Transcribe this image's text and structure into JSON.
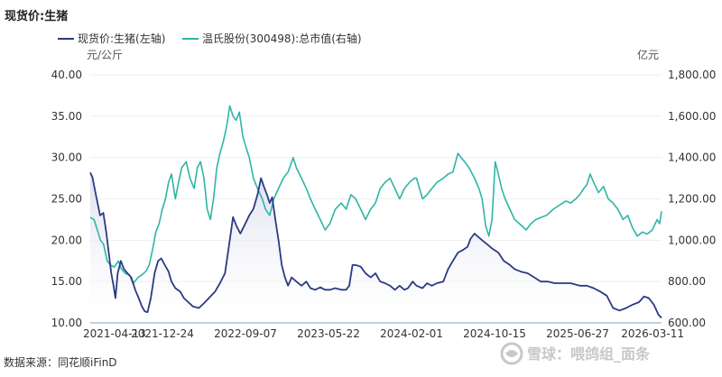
{
  "title": "现货价:生猪",
  "source_note": "数据来源：同花顺iFinD",
  "watermark": {
    "icon": "snowball-logo-icon",
    "text": "雪球：喂鸽组_面条"
  },
  "colors": {
    "left_series": "#2b3a85",
    "right_series": "#2fb5a5",
    "grid": "#eeeeee",
    "area_fill": "#d9dcec"
  },
  "chart_data": {
    "type": "line",
    "title": "现货价:生猪",
    "x_ticks": [
      "2021-04-13",
      "2021-12-24",
      "2022-09-07",
      "2023-05-22",
      "2024-02-01",
      "2024-10-15",
      "2025-06-27",
      "2026-03-11"
    ],
    "x_range": [
      "2021-04-13",
      "2026-03-11"
    ],
    "y_left": {
      "unit": "元/公斤",
      "ticks": [
        "10.00",
        "15.00",
        "20.00",
        "25.00",
        "30.00",
        "35.00",
        "40.00"
      ],
      "range": [
        10,
        40
      ]
    },
    "y_right": {
      "unit": "亿元",
      "ticks": [
        "600.00",
        "800.00",
        "1,000.00",
        "1,200.00",
        "1,400.00",
        "1,600.00",
        "1,800.00"
      ],
      "range": [
        600,
        1800
      ]
    },
    "grid": true,
    "legend_position": "top-left",
    "series": [
      {
        "name": "现货价:生猪(左轴)",
        "axis": "left",
        "style": "line-with-area",
        "points": [
          [
            "2021-04-13",
            28.2
          ],
          [
            "2021-04-20",
            27.6
          ],
          [
            "2021-04-28",
            26.0
          ],
          [
            "2021-05-06",
            24.5
          ],
          [
            "2021-05-14",
            23.0
          ],
          [
            "2021-05-24",
            23.3
          ],
          [
            "2021-06-02",
            21.0
          ],
          [
            "2021-06-10",
            18.5
          ],
          [
            "2021-06-18",
            16.0
          ],
          [
            "2021-06-25",
            14.5
          ],
          [
            "2021-07-01",
            13.0
          ],
          [
            "2021-07-08",
            16.0
          ],
          [
            "2021-07-18",
            17.5
          ],
          [
            "2021-07-28",
            16.5
          ],
          [
            "2021-08-08",
            16.0
          ],
          [
            "2021-08-20",
            15.5
          ],
          [
            "2021-09-01",
            14.0
          ],
          [
            "2021-09-12",
            13.0
          ],
          [
            "2021-09-22",
            12.0
          ],
          [
            "2021-10-01",
            11.4
          ],
          [
            "2021-10-10",
            11.3
          ],
          [
            "2021-10-20",
            13.0
          ],
          [
            "2021-11-01",
            16.0
          ],
          [
            "2021-11-12",
            17.5
          ],
          [
            "2021-11-22",
            17.8
          ],
          [
            "2021-12-03",
            17.0
          ],
          [
            "2021-12-15",
            16.2
          ],
          [
            "2021-12-24",
            15.0
          ],
          [
            "2022-01-05",
            14.2
          ],
          [
            "2022-01-20",
            13.8
          ],
          [
            "2022-02-01",
            13.0
          ],
          [
            "2022-02-15",
            12.5
          ],
          [
            "2022-03-01",
            12.0
          ],
          [
            "2022-03-20",
            11.8
          ],
          [
            "2022-04-08",
            12.5
          ],
          [
            "2022-04-25",
            13.2
          ],
          [
            "2022-05-10",
            13.8
          ],
          [
            "2022-05-25",
            14.8
          ],
          [
            "2022-06-10",
            16.0
          ],
          [
            "2022-06-25",
            20.0
          ],
          [
            "2022-07-05",
            22.8
          ],
          [
            "2022-07-15",
            21.8
          ],
          [
            "2022-07-28",
            20.8
          ],
          [
            "2022-08-10",
            21.8
          ],
          [
            "2022-08-25",
            23.0
          ],
          [
            "2022-09-07",
            23.8
          ],
          [
            "2022-09-20",
            25.5
          ],
          [
            "2022-10-01",
            27.5
          ],
          [
            "2022-10-10",
            26.5
          ],
          [
            "2022-10-20",
            25.5
          ],
          [
            "2022-10-28",
            24.5
          ],
          [
            "2022-11-05",
            25.2
          ],
          [
            "2022-11-15",
            22.5
          ],
          [
            "2022-11-25",
            20.0
          ],
          [
            "2022-12-05",
            17.0
          ],
          [
            "2022-12-15",
            15.5
          ],
          [
            "2022-12-25",
            14.5
          ],
          [
            "2023-01-05",
            15.5
          ],
          [
            "2023-01-20",
            15.0
          ],
          [
            "2023-02-05",
            14.5
          ],
          [
            "2023-02-20",
            15.0
          ],
          [
            "2023-03-05",
            14.2
          ],
          [
            "2023-03-20",
            14.0
          ],
          [
            "2023-04-05",
            14.3
          ],
          [
            "2023-04-20",
            14.0
          ],
          [
            "2023-05-05",
            14.0
          ],
          [
            "2023-05-22",
            14.2
          ],
          [
            "2023-06-10",
            14.0
          ],
          [
            "2023-06-25",
            14.0
          ],
          [
            "2023-07-05",
            14.5
          ],
          [
            "2023-07-15",
            17.0
          ],
          [
            "2023-07-25",
            17.0
          ],
          [
            "2023-08-10",
            16.8
          ],
          [
            "2023-08-25",
            16.0
          ],
          [
            "2023-09-10",
            15.5
          ],
          [
            "2023-09-25",
            16.0
          ],
          [
            "2023-10-10",
            15.0
          ],
          [
            "2023-10-25",
            14.8
          ],
          [
            "2023-11-10",
            14.5
          ],
          [
            "2023-11-25",
            14.0
          ],
          [
            "2023-12-10",
            14.5
          ],
          [
            "2023-12-25",
            14.0
          ],
          [
            "2024-01-05",
            14.2
          ],
          [
            "2024-01-20",
            15.0
          ],
          [
            "2024-02-01",
            14.5
          ],
          [
            "2024-02-20",
            14.2
          ],
          [
            "2024-03-05",
            14.8
          ],
          [
            "2024-03-20",
            14.5
          ],
          [
            "2024-04-05",
            14.8
          ],
          [
            "2024-04-25",
            15.0
          ],
          [
            "2024-05-10",
            16.5
          ],
          [
            "2024-05-25",
            17.5
          ],
          [
            "2024-06-10",
            18.5
          ],
          [
            "2024-06-25",
            18.8
          ],
          [
            "2024-07-10",
            19.2
          ],
          [
            "2024-07-20",
            20.2
          ],
          [
            "2024-08-01",
            20.8
          ],
          [
            "2024-08-10",
            20.5
          ],
          [
            "2024-08-25",
            20.0
          ],
          [
            "2024-09-10",
            19.5
          ],
          [
            "2024-09-25",
            19.0
          ],
          [
            "2024-10-15",
            18.5
          ],
          [
            "2024-11-01",
            17.5
          ],
          [
            "2024-11-20",
            17.0
          ],
          [
            "2024-12-05",
            16.5
          ],
          [
            "2024-12-25",
            16.2
          ],
          [
            "2025-01-15",
            16.0
          ],
          [
            "2025-02-05",
            15.5
          ],
          [
            "2025-02-25",
            15.0
          ],
          [
            "2025-03-20",
            15.0
          ],
          [
            "2025-04-10",
            14.8
          ],
          [
            "2025-05-05",
            14.8
          ],
          [
            "2025-05-30",
            14.8
          ],
          [
            "2025-06-27",
            14.5
          ],
          [
            "2025-07-20",
            14.5
          ],
          [
            "2025-08-10",
            14.2
          ],
          [
            "2025-08-30",
            13.8
          ],
          [
            "2025-09-20",
            13.3
          ],
          [
            "2025-10-10",
            11.8
          ],
          [
            "2025-10-30",
            11.5
          ],
          [
            "2025-11-20",
            11.8
          ],
          [
            "2025-12-10",
            12.2
          ],
          [
            "2025-12-30",
            12.5
          ],
          [
            "2026-01-15",
            13.2
          ],
          [
            "2026-01-30",
            13.0
          ],
          [
            "2026-02-15",
            12.2
          ],
          [
            "2026-03-01",
            11.0
          ],
          [
            "2026-03-11",
            10.6
          ]
        ]
      },
      {
        "name": "温氏股份(300498):总市值(右轴)",
        "axis": "right",
        "style": "line",
        "points": [
          [
            "2021-04-13",
            1110
          ],
          [
            "2021-04-25",
            1100
          ],
          [
            "2021-05-05",
            1050
          ],
          [
            "2021-05-15",
            1000
          ],
          [
            "2021-05-25",
            980
          ],
          [
            "2021-06-05",
            900
          ],
          [
            "2021-06-15",
            880
          ],
          [
            "2021-06-28",
            870
          ],
          [
            "2021-07-10",
            900
          ],
          [
            "2021-07-20",
            860
          ],
          [
            "2021-08-01",
            840
          ],
          [
            "2021-08-15",
            830
          ],
          [
            "2021-08-25",
            790
          ],
          [
            "2021-09-10",
            820
          ],
          [
            "2021-09-20",
            830
          ],
          [
            "2021-10-05",
            850
          ],
          [
            "2021-10-15",
            880
          ],
          [
            "2021-10-25",
            950
          ],
          [
            "2021-11-05",
            1040
          ],
          [
            "2021-11-15",
            1080
          ],
          [
            "2021-11-25",
            1150
          ],
          [
            "2021-12-05",
            1200
          ],
          [
            "2021-12-15",
            1280
          ],
          [
            "2021-12-24",
            1320
          ],
          [
            "2022-01-05",
            1200
          ],
          [
            "2022-01-15",
            1280
          ],
          [
            "2022-01-25",
            1350
          ],
          [
            "2022-02-08",
            1380
          ],
          [
            "2022-02-20",
            1300
          ],
          [
            "2022-03-05",
            1250
          ],
          [
            "2022-03-15",
            1350
          ],
          [
            "2022-03-25",
            1380
          ],
          [
            "2022-04-05",
            1300
          ],
          [
            "2022-04-15",
            1150
          ],
          [
            "2022-04-25",
            1100
          ],
          [
            "2022-05-05",
            1200
          ],
          [
            "2022-05-15",
            1350
          ],
          [
            "2022-05-25",
            1420
          ],
          [
            "2022-06-05",
            1480
          ],
          [
            "2022-06-15",
            1550
          ],
          [
            "2022-06-25",
            1650
          ],
          [
            "2022-07-05",
            1600
          ],
          [
            "2022-07-15",
            1580
          ],
          [
            "2022-07-25",
            1620
          ],
          [
            "2022-08-05",
            1500
          ],
          [
            "2022-08-15",
            1450
          ],
          [
            "2022-08-25",
            1400
          ],
          [
            "2022-09-07",
            1300
          ],
          [
            "2022-09-20",
            1250
          ],
          [
            "2022-10-05",
            1200
          ],
          [
            "2022-10-15",
            1150
          ],
          [
            "2022-10-28",
            1120
          ],
          [
            "2022-11-10",
            1200
          ],
          [
            "2022-11-25",
            1250
          ],
          [
            "2022-12-10",
            1300
          ],
          [
            "2022-12-25",
            1330
          ],
          [
            "2023-01-10",
            1400
          ],
          [
            "2023-01-20",
            1350
          ],
          [
            "2023-02-05",
            1300
          ],
          [
            "2023-02-20",
            1250
          ],
          [
            "2023-03-05",
            1200
          ],
          [
            "2023-03-20",
            1150
          ],
          [
            "2023-04-05",
            1100
          ],
          [
            "2023-04-20",
            1050
          ],
          [
            "2023-05-05",
            1080
          ],
          [
            "2023-05-22",
            1150
          ],
          [
            "2023-06-10",
            1180
          ],
          [
            "2023-06-25",
            1150
          ],
          [
            "2023-07-10",
            1220
          ],
          [
            "2023-07-25",
            1200
          ],
          [
            "2023-08-10",
            1150
          ],
          [
            "2023-08-25",
            1100
          ],
          [
            "2023-09-10",
            1150
          ],
          [
            "2023-09-25",
            1180
          ],
          [
            "2023-10-10",
            1250
          ],
          [
            "2023-10-25",
            1280
          ],
          [
            "2023-11-10",
            1300
          ],
          [
            "2023-11-25",
            1250
          ],
          [
            "2023-12-10",
            1200
          ],
          [
            "2023-12-25",
            1250
          ],
          [
            "2024-01-10",
            1280
          ],
          [
            "2024-01-25",
            1300
          ],
          [
            "2024-02-01",
            1300
          ],
          [
            "2024-02-20",
            1200
          ],
          [
            "2024-03-05",
            1220
          ],
          [
            "2024-03-20",
            1250
          ],
          [
            "2024-04-05",
            1280
          ],
          [
            "2024-04-25",
            1300
          ],
          [
            "2024-05-10",
            1320
          ],
          [
            "2024-05-25",
            1330
          ],
          [
            "2024-06-10",
            1420
          ],
          [
            "2024-06-20",
            1400
          ],
          [
            "2024-07-01",
            1380
          ],
          [
            "2024-07-15",
            1350
          ],
          [
            "2024-08-01",
            1300
          ],
          [
            "2024-08-15",
            1250
          ],
          [
            "2024-08-25",
            1200
          ],
          [
            "2024-09-05",
            1070
          ],
          [
            "2024-09-15",
            1020
          ],
          [
            "2024-09-25",
            1100
          ],
          [
            "2024-10-05",
            1380
          ],
          [
            "2024-10-15",
            1320
          ],
          [
            "2024-10-25",
            1250
          ],
          [
            "2024-11-05",
            1200
          ],
          [
            "2024-11-20",
            1150
          ],
          [
            "2024-12-05",
            1100
          ],
          [
            "2024-12-20",
            1080
          ],
          [
            "2025-01-10",
            1050
          ],
          [
            "2025-01-25",
            1080
          ],
          [
            "2025-02-10",
            1100
          ],
          [
            "2025-02-25",
            1110
          ],
          [
            "2025-03-15",
            1120
          ],
          [
            "2025-04-05",
            1150
          ],
          [
            "2025-04-25",
            1170
          ],
          [
            "2025-05-15",
            1190
          ],
          [
            "2025-05-30",
            1180
          ],
          [
            "2025-06-15",
            1200
          ],
          [
            "2025-06-27",
            1220
          ],
          [
            "2025-07-10",
            1250
          ],
          [
            "2025-07-20",
            1270
          ],
          [
            "2025-07-30",
            1320
          ],
          [
            "2025-08-10",
            1280
          ],
          [
            "2025-08-25",
            1230
          ],
          [
            "2025-09-10",
            1260
          ],
          [
            "2025-09-25",
            1200
          ],
          [
            "2025-10-10",
            1180
          ],
          [
            "2025-10-25",
            1150
          ],
          [
            "2025-11-10",
            1100
          ],
          [
            "2025-11-25",
            1120
          ],
          [
            "2025-12-10",
            1060
          ],
          [
            "2025-12-25",
            1020
          ],
          [
            "2026-01-10",
            1040
          ],
          [
            "2026-01-25",
            1030
          ],
          [
            "2026-02-10",
            1050
          ],
          [
            "2026-02-25",
            1100
          ],
          [
            "2026-03-05",
            1080
          ],
          [
            "2026-03-11",
            1140
          ]
        ]
      }
    ]
  }
}
